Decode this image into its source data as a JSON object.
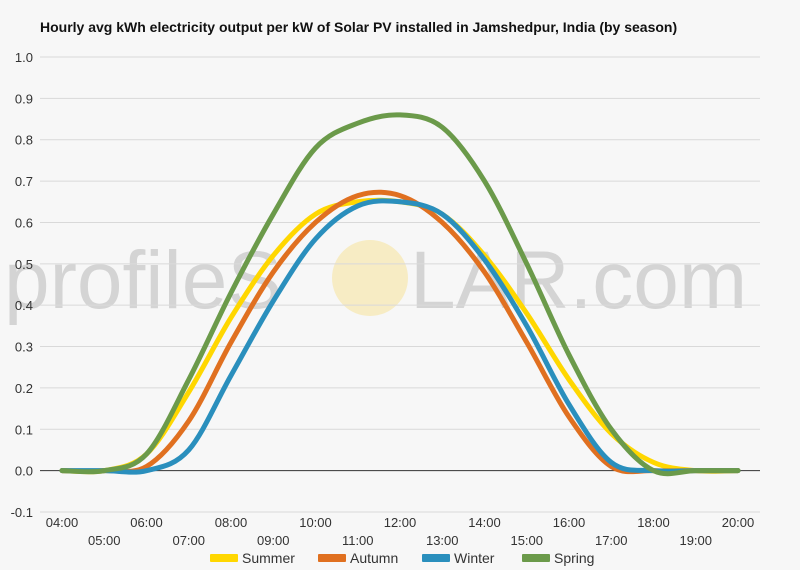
{
  "chart_data": {
    "type": "line",
    "title": "Hourly avg kWh electricity output per kW of Solar PV installed in Jamshedpur, India (by season)",
    "xlabel": "",
    "ylabel": "",
    "ylim": [
      -0.1,
      1.0
    ],
    "yticks": [
      "-0.1",
      "0.0",
      "0.1",
      "0.2",
      "0.3",
      "0.4",
      "0.5",
      "0.6",
      "0.7",
      "0.8",
      "0.9",
      "1.0"
    ],
    "categories": [
      "04:00",
      "05:00",
      "06:00",
      "07:00",
      "08:00",
      "09:00",
      "10:00",
      "11:00",
      "12:00",
      "13:00",
      "14:00",
      "15:00",
      "16:00",
      "17:00",
      "18:00",
      "19:00",
      "20:00"
    ],
    "grid": true,
    "legend_position": "bottom",
    "series": [
      {
        "name": "Summer",
        "color": "#ffd700",
        "values": [
          0.0,
          0.0,
          0.04,
          0.19,
          0.37,
          0.52,
          0.62,
          0.65,
          0.65,
          0.62,
          0.52,
          0.38,
          0.22,
          0.09,
          0.02,
          0.0,
          0.0
        ]
      },
      {
        "name": "Autumn",
        "color": "#e07020",
        "values": [
          0.0,
          0.0,
          0.01,
          0.12,
          0.31,
          0.48,
          0.6,
          0.665,
          0.665,
          0.6,
          0.48,
          0.31,
          0.13,
          0.01,
          0.0,
          0.0,
          0.0
        ]
      },
      {
        "name": "Winter",
        "color": "#2a8fbd",
        "values": [
          0.0,
          0.0,
          0.0,
          0.05,
          0.23,
          0.41,
          0.56,
          0.64,
          0.65,
          0.62,
          0.51,
          0.35,
          0.16,
          0.02,
          0.0,
          0.0,
          0.0
        ]
      },
      {
        "name": "Spring",
        "color": "#6b9a4a",
        "values": [
          0.0,
          0.0,
          0.04,
          0.22,
          0.43,
          0.62,
          0.78,
          0.84,
          0.86,
          0.83,
          0.7,
          0.5,
          0.28,
          0.1,
          0.0,
          0.0,
          0.0
        ]
      }
    ]
  },
  "watermark": {
    "text_left": "profileS",
    "text_right": "LAR.com"
  }
}
